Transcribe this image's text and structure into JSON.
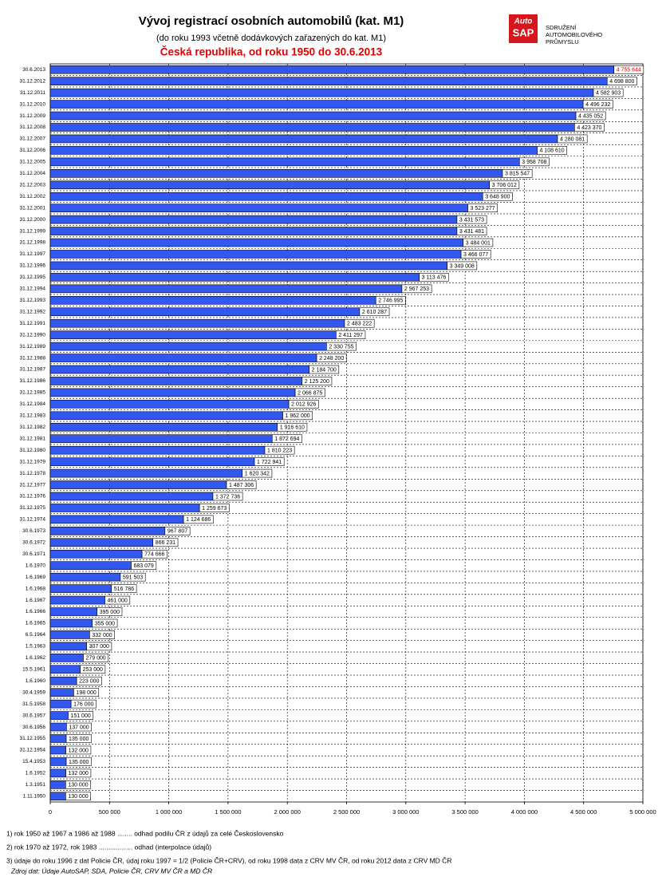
{
  "chart_data": {
    "type": "barh",
    "title": "Vývoj registrací osobních automobilů (kat. M1)",
    "subtitle": "(do roku 1993 včetně dodávkových zařazených do kat. M1)",
    "subtitle2": "Česká republika, od roku 1950 do 30.6.2013",
    "categories": [
      "30.6.2013",
      "31.12.2012",
      "31.12.2011",
      "31.12.2010",
      "31.12.2009",
      "31.12.2008",
      "31.12.2007",
      "31.12.2006",
      "31.12.2005",
      "31.12.2004",
      "31.12.2003",
      "31.12.2002",
      "31.12.2001",
      "31.12.2000",
      "31.12.1999",
      "31.12.1998",
      "31.12.1997",
      "31.12.1996",
      "31.12.1995",
      "31.12.1994",
      "31.12.1993",
      "31.12.1992",
      "31.12.1991",
      "31.12.1990",
      "31.12.1989",
      "31.12.1988",
      "31.12.1987",
      "31.12.1986",
      "31.12.1985",
      "31.12.1984",
      "31.12.1983",
      "31.12.1982",
      "31.12.1981",
      "31.12.1980",
      "31.12.1979",
      "31.12.1978",
      "31.12.1977",
      "31.12.1976",
      "31.12.1975",
      "31.12.1974",
      "30.6.1973",
      "30.6.1972",
      "30.6.1971",
      "1.6.1970",
      "1.6.1969",
      "1.6.1968",
      "1.6.1967",
      "1.6.1966",
      "1.6.1965",
      "6.5.1964",
      "1.5.1963",
      "1.6.1962",
      "15.5.1961",
      "1.6.1960",
      "30.4.1959",
      "31.5.1958",
      "30.6.1957",
      "30.6.1956",
      "31.12.1955",
      "31.12.1954",
      "15.4.1953",
      "1.6.1952",
      "1.3.1951",
      "1.11.1950"
    ],
    "values": [
      4755644,
      4698800,
      4582903,
      4496232,
      4435052,
      4423370,
      4280081,
      4108610,
      3958708,
      3815547,
      3706012,
      3648900,
      3523277,
      3431573,
      3431481,
      3484001,
      3466077,
      3349008,
      3113476,
      2967253,
      2746995,
      2610287,
      2483222,
      2411297,
      2330755,
      2248200,
      2184700,
      2125200,
      2066875,
      2012926,
      1962000,
      1916610,
      1872694,
      1810223,
      1722941,
      1620342,
      1487306,
      1372736,
      1259673,
      1124686,
      967807,
      866231,
      774666,
      683079,
      591503,
      516786,
      461000,
      395000,
      355000,
      332000,
      307000,
      279000,
      253000,
      223000,
      198000,
      176000,
      151000,
      137000,
      135000,
      132000,
      135000,
      132000,
      130000,
      130000
    ],
    "value_labels": [
      "4 755 644",
      "4 698 800",
      "4 582 903",
      "4 496 232",
      "4 435 052",
      "4 423 370",
      "4 280 081",
      "4 108 610",
      "3 958 708",
      "3 815 547",
      "3 706 012",
      "3 648 900",
      "3 523 277",
      "3 431 573",
      "3 431 481",
      "3 484 001",
      "3 466 077",
      "3 349 008",
      "3 113 476",
      "2 967 253",
      "2 746 995",
      "2 610 287",
      "2 483 222",
      "2 411 297",
      "2 330 755",
      "2 248 200",
      "2 184 700",
      "2 125 200",
      "2 066 875",
      "2 012 926",
      "1 962 000",
      "1 916 610",
      "1 872 694",
      "1 810 223",
      "1 722 941",
      "1 620 342",
      "1 487 306",
      "1 372 736",
      "1 259 673",
      "1 124 686",
      "967 807",
      "866 231",
      "774 666",
      "683 079",
      "591 503",
      "516 786",
      "461 000",
      "395 000",
      "355 000",
      "332 000",
      "307 000",
      "279 000",
      "253 000",
      "223 000",
      "198 000",
      "176 000",
      "151 000",
      "137 000",
      "135 000",
      "132 000",
      "135 000",
      "132 000",
      "130 000",
      "130 000"
    ],
    "color": "#3358f0",
    "xlim": [
      0,
      5000000
    ],
    "xticks": [
      0,
      {
        "value": 500000,
        "label": "500 000"
      },
      {
        "value": 1000000,
        "label": "1 000 000"
      },
      {
        "value": 1500000,
        "label": "1 500 000"
      },
      {
        "value": 2000000,
        "label": "2 000 000"
      },
      {
        "value": 2500000,
        "label": "2 500 000"
      },
      {
        "value": 3000000,
        "label": "3 000 000"
      },
      {
        "value": 3500000,
        "label": "3 500 000"
      },
      {
        "value": 4000000,
        "label": "4 000 000"
      },
      {
        "value": 4500000,
        "label": "4 500 000"
      },
      {
        "value": 5000000,
        "label": "5 000 000"
      }
    ],
    "grid": true
  },
  "logo": {
    "mark_top": "Auto",
    "mark_bottom": "SAP",
    "lines": [
      "SDRUŽENÍ",
      "AUTOMOBILOVÉHO",
      "PRŮMYSLU"
    ]
  },
  "footnotes": [
    "1) rok 1950 až 1967 a 1986 až 1988 ........ odhad podílu ČR z údajů za celé Československo",
    "2) rok 1970 až 1972, rok 1983 .................. odhad (interpolace údajů)",
    "3) údaje do roku 1996 z dat Policie ČR, údaj roku 1997 = 1/2 (Policie ČR+CRV), od roku 1998 data z CRV MV ČR, od roku 2012 data z CRV MD ČR",
    "Zdroj dat: Údaje AutoSAP, SDA, Policie ČR, CRV MV ČR a MD ČR"
  ]
}
